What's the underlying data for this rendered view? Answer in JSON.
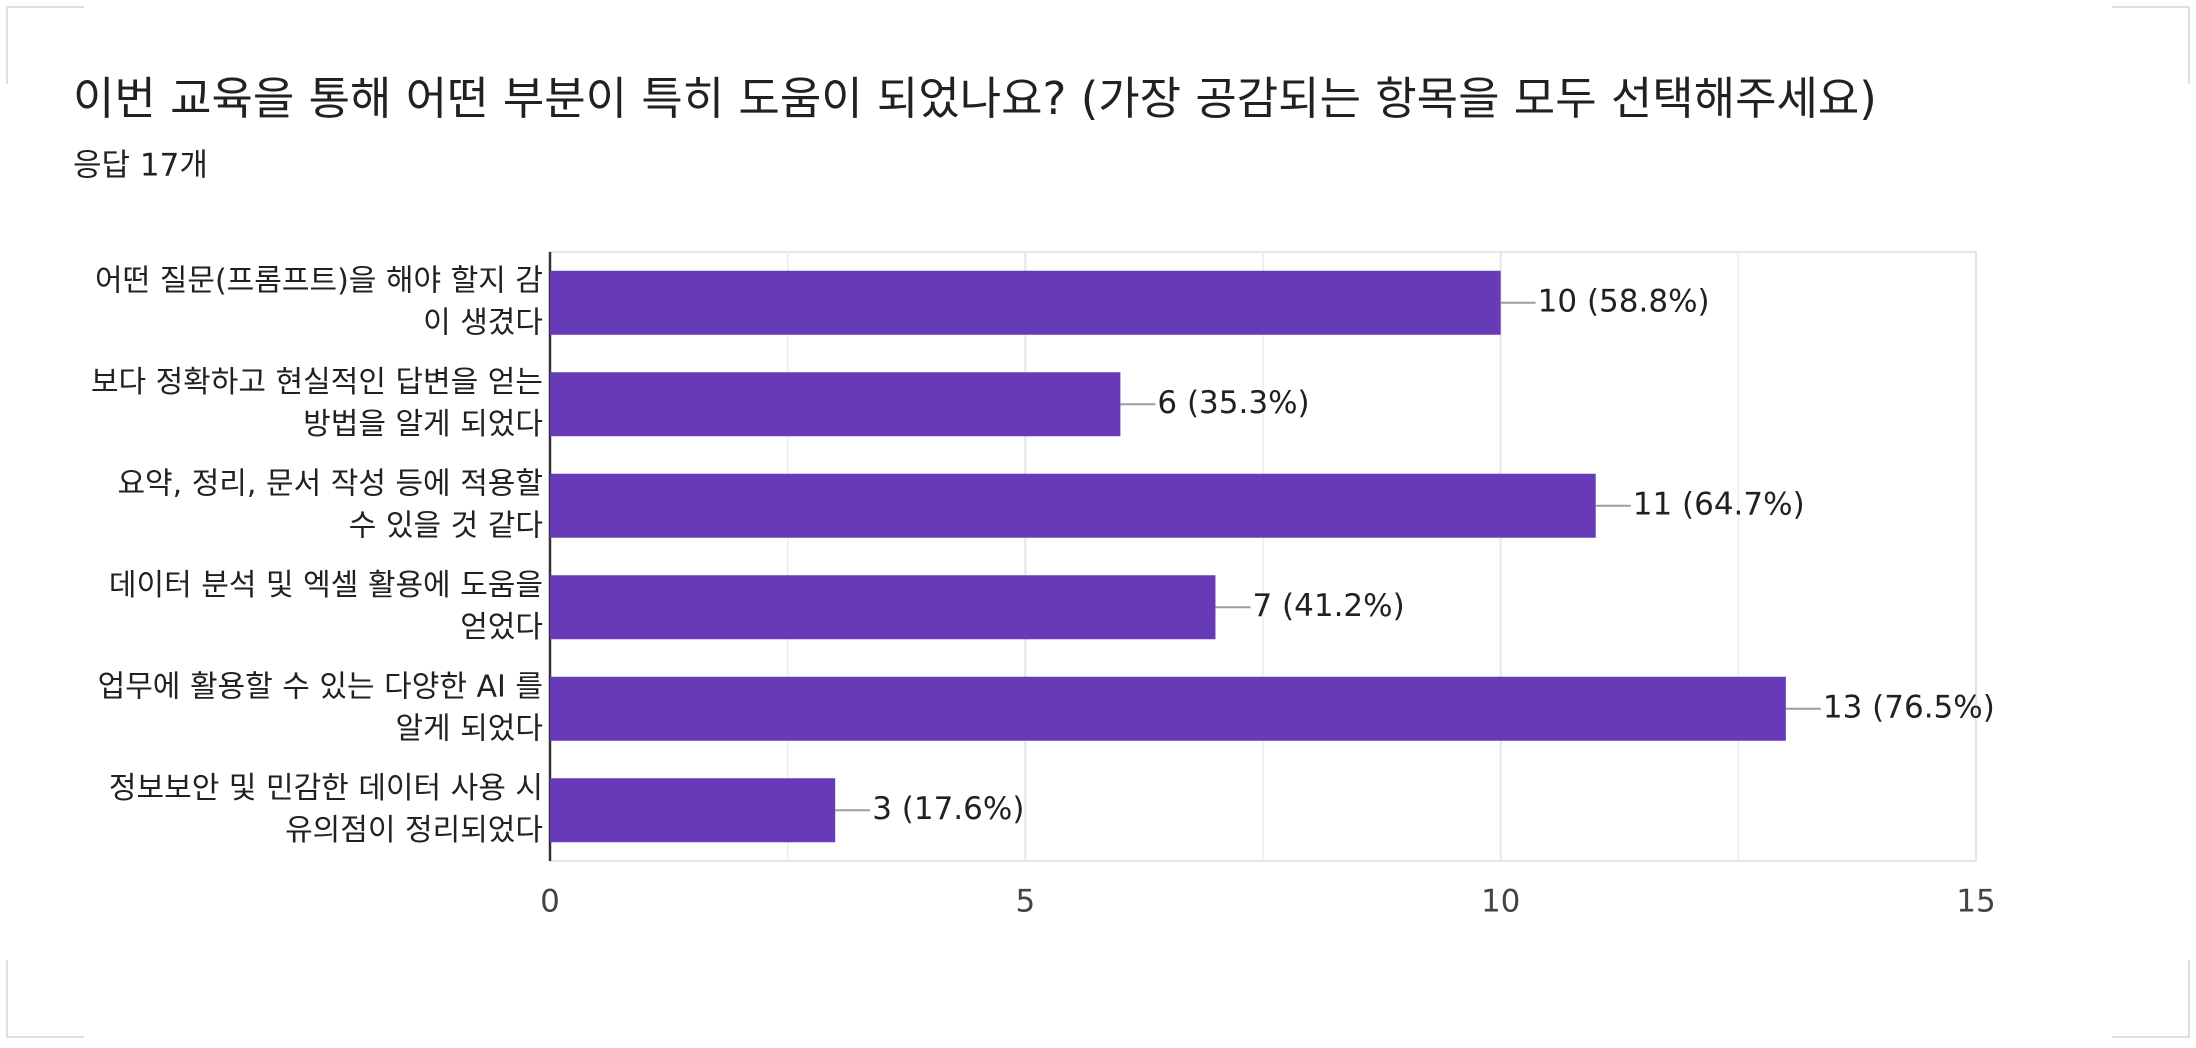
{
  "chart_data": {
    "type": "bar",
    "orientation": "horizontal",
    "title": "이번 교육을 통해 어떤 부분이 특히 도움이 되었나요? (가장 공감되는 항목을 모두 선택해주세요)",
    "subtitle": "응답 17개",
    "categories": [
      [
        "어떤 질문(프롬프트)을 해야 할지 감",
        "이 생겼다"
      ],
      [
        "보다 정확하고 현실적인 답변을 얻는",
        "방법을 알게 되었다"
      ],
      [
        "요약, 정리, 문서 작성 등에 적용할",
        "수 있을 것 같다"
      ],
      [
        "데이터 분석 및 엑셀 활용에 도움을",
        "얻었다"
      ],
      [
        "업무에 활용할 수 있는 다양한 AI 를",
        "알게 되었다"
      ],
      [
        "정보보안 및 민감한 데이터 사용 시",
        "유의점이 정리되었다"
      ]
    ],
    "values": [
      10,
      6,
      11,
      7,
      13,
      3
    ],
    "value_labels": [
      "10 (58.8%)",
      "6 (35.3%)",
      "11 (64.7%)",
      "7 (41.2%)",
      "13 (76.5%)",
      "3 (17.6%)"
    ],
    "color": "#673ab7",
    "xlim": [
      0,
      15
    ],
    "xticks": [
      0,
      5,
      10,
      15
    ],
    "x_minor_grid": [
      2.5,
      7.5,
      12.5
    ],
    "grid": true
  }
}
